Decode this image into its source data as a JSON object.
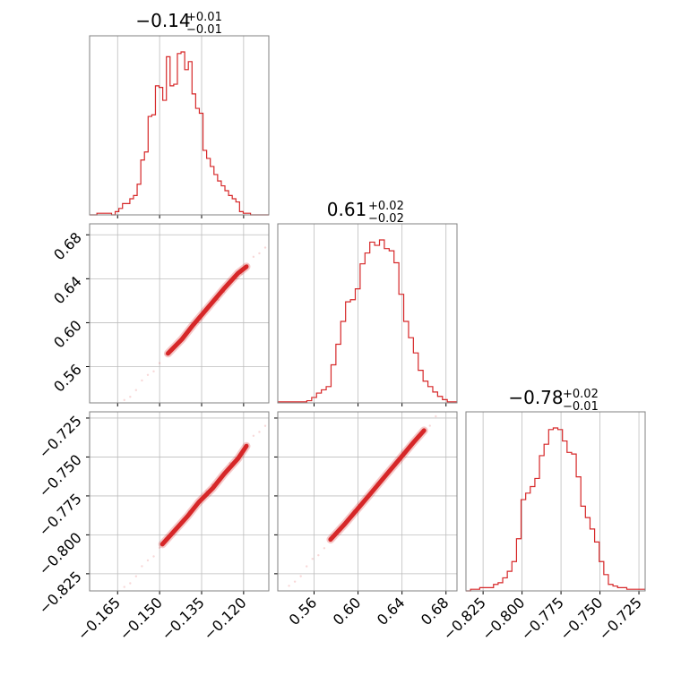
{
  "color": "#d62728",
  "titles": {
    "p0": {
      "value": "−0.14",
      "plus": "+0.01",
      "minus": "−0.01"
    },
    "p1": {
      "value": "0.61",
      "plus": "+0.02",
      "minus": "−0.02"
    },
    "p2": {
      "value": "−0.78",
      "plus": "+0.02",
      "minus": "−0.01"
    }
  },
  "chart_data": {
    "type": "corner",
    "params": [
      {
        "range": [
          -0.175,
          -0.111
        ],
        "ticks": [
          -0.165,
          -0.15,
          -0.135,
          -0.12
        ],
        "tick_labels": [
          "−0.165",
          "−0.150",
          "−0.135",
          "−0.120"
        ],
        "median": -0.14
      },
      {
        "range": [
          0.527,
          0.69
        ],
        "ticks": [
          0.56,
          0.6,
          0.64,
          0.68
        ],
        "tick_labels": [
          "0.56",
          "0.60",
          "0.64",
          "0.68"
        ],
        "median": 0.61
      },
      {
        "range": [
          -0.836,
          -0.721
        ],
        "ticks": [
          -0.825,
          -0.8,
          -0.775,
          -0.75,
          -0.725
        ],
        "tick_labels": [
          "−0.825",
          "−0.800",
          "−0.775",
          "−0.750",
          "−0.725"
        ],
        "median": -0.78
      }
    ],
    "histograms": [
      {
        "param": 0,
        "counts": [
          0,
          0,
          1,
          1,
          1,
          1,
          0,
          2,
          4,
          7,
          7,
          10,
          12,
          19,
          34,
          39,
          61,
          62,
          80,
          79,
          71,
          98,
          80,
          81,
          100,
          101,
          90,
          95,
          75,
          66,
          63,
          40,
          35,
          30,
          25,
          21,
          18,
          15,
          12,
          10,
          8,
          2,
          1,
          1,
          0,
          0,
          0,
          0,
          0
        ]
      },
      {
        "param": 1,
        "counts": [
          1,
          1,
          1,
          1,
          1,
          1,
          2,
          5,
          9,
          12,
          15,
          35,
          54,
          75,
          93,
          95,
          105,
          128,
          138,
          148,
          145,
          150,
          142,
          140,
          129,
          100,
          75,
          60,
          46,
          30,
          20,
          15,
          10,
          6,
          3,
          1,
          1
        ]
      },
      {
        "param": 2,
        "counts": [
          0,
          1,
          1,
          2,
          2,
          2,
          4,
          5,
          8,
          12,
          18,
          32,
          56,
          60,
          64,
          69,
          83,
          90,
          99,
          100,
          99,
          92,
          85,
          84,
          70,
          52,
          45,
          38,
          30,
          18,
          10,
          4,
          3,
          2,
          2,
          1,
          1,
          1,
          1
        ]
      }
    ],
    "scatter": [
      {
        "x_param": 0,
        "y_param": 1,
        "relation": "linear",
        "points": [
          [
            -0.147,
            0.572
          ],
          [
            -0.142,
            0.585
          ],
          [
            -0.138,
            0.598
          ],
          [
            -0.135,
            0.607
          ],
          [
            -0.131,
            0.619
          ],
          [
            -0.127,
            0.631
          ],
          [
            -0.122,
            0.645
          ],
          [
            -0.119,
            0.651
          ]
        ]
      },
      {
        "x_param": 0,
        "y_param": 2,
        "relation": "linear",
        "points": [
          [
            -0.149,
            -0.806
          ],
          [
            -0.145,
            -0.798
          ],
          [
            -0.14,
            -0.788
          ],
          [
            -0.136,
            -0.779
          ],
          [
            -0.131,
            -0.77
          ],
          [
            -0.127,
            -0.761
          ],
          [
            -0.122,
            -0.751
          ],
          [
            -0.119,
            -0.743
          ]
        ]
      },
      {
        "x_param": 1,
        "y_param": 2,
        "relation": "linear",
        "points": [
          [
            0.575,
            -0.803
          ],
          [
            0.588,
            -0.793
          ],
          [
            0.6,
            -0.783
          ],
          [
            0.612,
            -0.773
          ],
          [
            0.625,
            -0.762
          ],
          [
            0.637,
            -0.752
          ],
          [
            0.65,
            -0.741
          ],
          [
            0.66,
            -0.733
          ]
        ]
      }
    ]
  }
}
